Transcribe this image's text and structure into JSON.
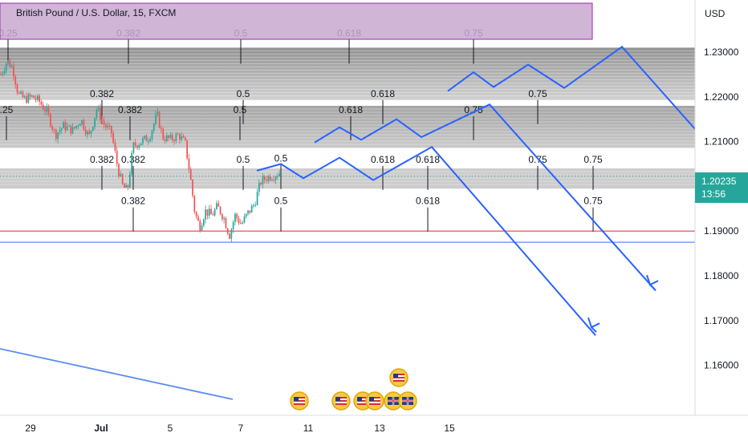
{
  "chart_title": "British Pound / U.S. Dollar, 15, FXCM",
  "currency": "USD",
  "current_price": "1.20235",
  "countdown": "13:56",
  "colors": {
    "candle_up": "#26a69a",
    "candle_down": "#ef5350",
    "forecast": "#2962ff",
    "red_line": "#f23645",
    "blue_line": "#5b8def",
    "zone_fill": "#8c8c8c",
    "header_box": "#c8a8d0",
    "price_badge": "#26a69a"
  },
  "chart_data": {
    "type": "candlestick",
    "title": "British Pound / U.S. Dollar, 15, FXCM",
    "y_unit": "USD",
    "ylim": [
      1.1515,
      1.2374
    ],
    "y_ticks": [
      "1.23000",
      "1.22000",
      "1.21000",
      "1.19000",
      "1.18000",
      "1.17000",
      "1.16000"
    ],
    "x_ticks": [
      "29",
      "Jul",
      "5",
      "7",
      "11",
      "13",
      "15"
    ],
    "price_path": [
      [
        0,
        1.225
      ],
      [
        8,
        1.228
      ],
      [
        15,
        1.2265
      ],
      [
        22,
        1.2205
      ],
      [
        30,
        1.2195
      ],
      [
        40,
        1.22
      ],
      [
        48,
        1.219
      ],
      [
        58,
        1.2165
      ],
      [
        68,
        1.2115
      ],
      [
        78,
        1.2135
      ],
      [
        90,
        1.2125
      ],
      [
        100,
        1.215
      ],
      [
        110,
        1.211
      ],
      [
        120,
        1.2175
      ],
      [
        128,
        1.214
      ],
      [
        138,
        1.212
      ],
      [
        146,
        1.204
      ],
      [
        152,
        1.2
      ],
      [
        158,
        1.199
      ],
      [
        165,
        1.209
      ],
      [
        175,
        1.21
      ],
      [
        185,
        1.211
      ],
      [
        195,
        1.216
      ],
      [
        202,
        1.211
      ],
      [
        212,
        1.2105
      ],
      [
        222,
        1.2115
      ],
      [
        230,
        1.2095
      ],
      [
        236,
        1.2025
      ],
      [
        242,
        1.194
      ],
      [
        248,
        1.191
      ],
      [
        255,
        1.1945
      ],
      [
        263,
        1.1935
      ],
      [
        270,
        1.1955
      ],
      [
        278,
        1.193
      ],
      [
        285,
        1.189
      ],
      [
        292,
        1.1935
      ],
      [
        300,
        1.1915
      ],
      [
        308,
        1.194
      ],
      [
        316,
        1.196
      ],
      [
        324,
        1.201
      ],
      [
        332,
        1.202
      ],
      [
        340,
        1.2025
      ],
      [
        348,
        1.203
      ]
    ],
    "forecast_paths": [
      [
        [
          558,
          1.2213
        ],
        [
          590,
          1.2255
        ],
        [
          615,
          1.2222
        ],
        [
          658,
          1.2272
        ],
        [
          703,
          1.222
        ],
        [
          775,
          1.2312
        ],
        [
          868,
          1.2124
        ]
      ],
      [
        [
          392,
          1.2098
        ],
        [
          423,
          1.2132
        ],
        [
          450,
          1.2104
        ],
        [
          494,
          1.215
        ],
        [
          525,
          1.211
        ],
        [
          610,
          1.2183
        ],
        [
          817,
          1.1767
        ]
      ],
      [
        [
          320,
          1.2035
        ],
        [
          350,
          1.205
        ],
        [
          378,
          1.2018
        ],
        [
          423,
          1.2064
        ],
        [
          465,
          1.2014
        ],
        [
          538,
          1.2088
        ],
        [
          742,
          1.1667
        ]
      ]
    ],
    "arrowheads": [
      [
        810,
        1.178
      ],
      [
        737,
        1.1685
      ]
    ],
    "horizontal_lines": [
      {
        "price": 1.19,
        "color": "#f23645"
      },
      {
        "price": 1.1875,
        "color": "#5b8def"
      },
      {
        "price": 1.2023,
        "color": "#26a69a",
        "style": "dotted"
      }
    ],
    "diagonal_line": {
      "from": [
        0,
        1.1637
      ],
      "to": [
        290,
        1.1524
      ]
    },
    "zones": [
      {
        "from": 1.2193,
        "to": 1.231,
        "gradient": true
      },
      {
        "from": 1.2086,
        "to": 1.218
      },
      {
        "from": 1.1995,
        "to": 1.204
      }
    ],
    "fib_levels": [
      {
        "label": "0.25",
        "x": 10,
        "y": 1.2335
      },
      {
        "label": "0.382",
        "x": 160,
        "y": 1.2335
      },
      {
        "label": "0.5",
        "x": 300,
        "y": 1.2335
      },
      {
        "label": "0.618",
        "x": 435,
        "y": 1.2335
      },
      {
        "label": "0.75",
        "x": 590,
        "y": 1.2335
      },
      {
        "label": "0.382",
        "x": 127,
        "y": 1.22
      },
      {
        "label": "0.5",
        "x": 303,
        "y": 1.22
      },
      {
        "label": "0.618",
        "x": 477,
        "y": 1.22
      },
      {
        "label": "0.75",
        "x": 670,
        "y": 1.22
      },
      {
        "label": ".25",
        "x": 8,
        "y": 1.2164
      },
      {
        "label": "0.382",
        "x": 162,
        "y": 1.2164
      },
      {
        "label": "0.5",
        "x": 299,
        "y": 1.2164
      },
      {
        "label": "0.618",
        "x": 437,
        "y": 1.2164
      },
      {
        "label": "0.75",
        "x": 590,
        "y": 1.2164
      },
      {
        "label": "0.382",
        "x": 127,
        "y": 1.2053
      },
      {
        "label": "0.382",
        "x": 166,
        "y": 1.2053
      },
      {
        "label": "0.5",
        "x": 303,
        "y": 1.2053
      },
      {
        "label": "0.618",
        "x": 477,
        "y": 1.2053
      },
      {
        "label": "0.618",
        "x": 533,
        "y": 1.2053
      },
      {
        "label": "0.75",
        "x": 670,
        "y": 1.2053
      },
      {
        "label": "0.75",
        "x": 739,
        "y": 1.2053
      },
      {
        "label": "0.5",
        "x": 350,
        "y": 1.2055
      },
      {
        "label": "0.382",
        "x": 166,
        "y": 1.196
      },
      {
        "label": "0.5",
        "x": 350,
        "y": 1.196
      },
      {
        "label": "0.618",
        "x": 533,
        "y": 1.196
      },
      {
        "label": "0.75",
        "x": 739,
        "y": 1.196
      }
    ]
  },
  "event_icons": [
    "us-flag-icon",
    "us-flag-icon",
    "us-flag-icon",
    "uk-flag-icon",
    "uk-flag-icon",
    "us-flag-icon",
    "us-flag-icon"
  ]
}
